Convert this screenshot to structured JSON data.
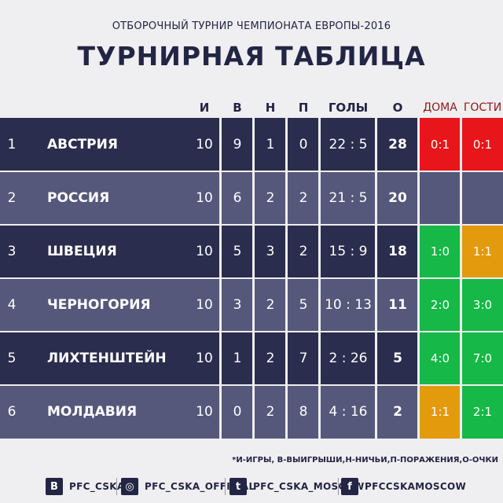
{
  "header": {
    "subtitle": "ОТБОРОЧНЫЙ ТУРНИР ЧЕМПИОНАТА ЕВРОПЫ-2016",
    "title": "ТУРНИРНАЯ ТАБЛИЦА"
  },
  "columns": {
    "played": "И",
    "won": "В",
    "drawn": "Н",
    "lost": "П",
    "goals": "ГОЛЫ",
    "points": "О",
    "home": "ДОМА",
    "away": "ГОСТИ"
  },
  "colors": {
    "red": "#e8151b",
    "green": "#16b847",
    "orange": "#e39a0c"
  },
  "rows": [
    {
      "pos": "1",
      "team": "АВСТРИЯ",
      "played": "10",
      "won": "9",
      "drawn": "1",
      "lost": "0",
      "goals": "22 : 5",
      "points": "28",
      "home": "0:1",
      "home_color": "red",
      "away": "0:1",
      "away_color": "red"
    },
    {
      "pos": "2",
      "team": "РОССИЯ",
      "played": "10",
      "won": "6",
      "drawn": "2",
      "lost": "2",
      "goals": "21 : 5",
      "points": "20",
      "home": "",
      "home_color": "",
      "away": "",
      "away_color": ""
    },
    {
      "pos": "3",
      "team": "ШВЕЦИЯ",
      "played": "10",
      "won": "5",
      "drawn": "3",
      "lost": "2",
      "goals": "15 : 9",
      "points": "18",
      "home": "1:0",
      "home_color": "green",
      "away": "1:1",
      "away_color": "orange"
    },
    {
      "pos": "4",
      "team": "ЧЕРНОГОРИЯ",
      "played": "10",
      "won": "3",
      "drawn": "2",
      "lost": "5",
      "goals": "10 : 13",
      "points": "11",
      "home": "2:0",
      "home_color": "green",
      "away": "3:0",
      "away_color": "green"
    },
    {
      "pos": "5",
      "team": "ЛИХТЕНШТЕЙН",
      "played": "10",
      "won": "1",
      "drawn": "2",
      "lost": "7",
      "goals": "2 : 26",
      "points": "5",
      "home": "4:0",
      "home_color": "green",
      "away": "7:0",
      "away_color": "green"
    },
    {
      "pos": "6",
      "team": "МОЛДАВИЯ",
      "played": "10",
      "won": "0",
      "drawn": "2",
      "lost": "8",
      "goals": "4 : 16",
      "points": "2",
      "home": "1:1",
      "home_color": "orange",
      "away": "2:1",
      "away_color": "green"
    }
  ],
  "legend": "*И-ИГРЫ, В-ВЫИГРЫШИ,Н-НИЧЬИ,П-ПОРАЖЕНИЯ,О-ОЧКИ",
  "social": [
    {
      "icon": "vk-icon",
      "glyph": "В",
      "text": "PFC_CSKA"
    },
    {
      "icon": "instagram-icon",
      "glyph": "◎",
      "text": "PFC_CSKA_OFFICIAL"
    },
    {
      "icon": "twitter-icon",
      "glyph": "t",
      "text": "PFC_CSKA_MOSCOW"
    },
    {
      "icon": "facebook-icon",
      "glyph": "f",
      "text": "PFCCSKAMOSCOW"
    }
  ]
}
